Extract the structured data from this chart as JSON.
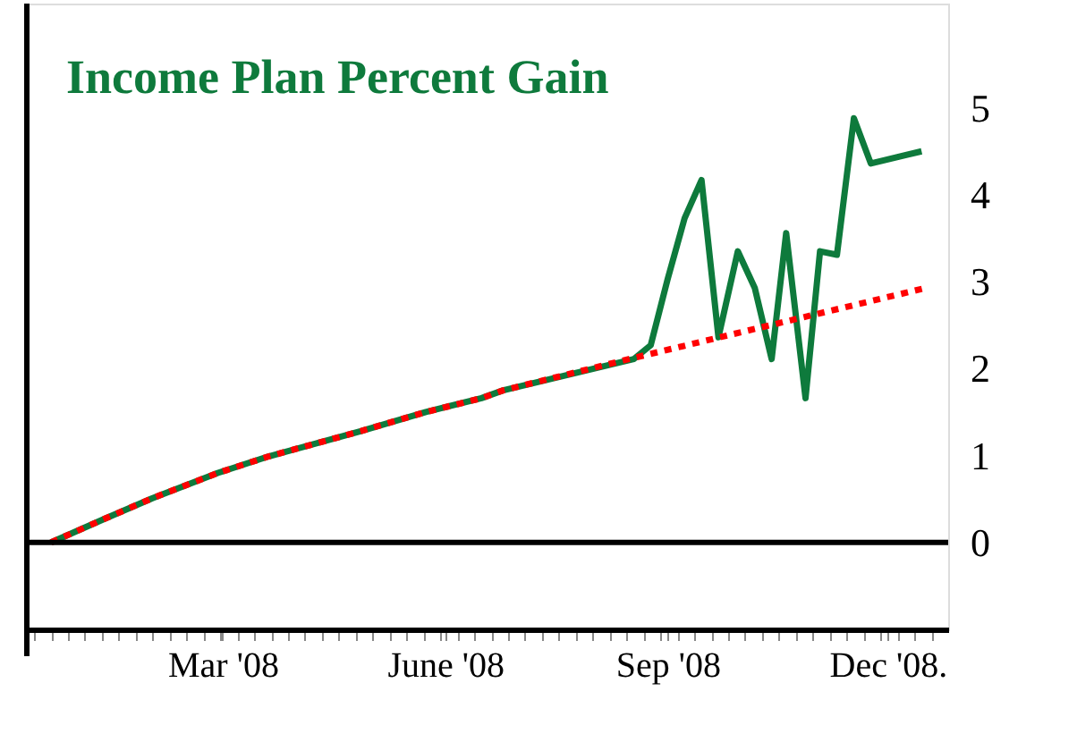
{
  "chart_data": {
    "type": "line",
    "title": "Income Plan Percent Gain",
    "series": [
      {
        "color": "#0e7a3c",
        "line_style": "solid",
        "x": [
          "2007-12-21",
          "2008-01-12",
          "2008-02-01",
          "2008-02-28",
          "2008-03-20",
          "2008-04-27",
          "2008-05-24",
          "2008-06-16",
          "2008-06-25",
          "2008-08-18",
          "2008-08-25",
          "2008-09-01",
          "2008-09-08",
          "2008-09-15",
          "2008-09-22",
          "2008-09-30",
          "2008-10-07",
          "2008-10-14",
          "2008-10-20",
          "2008-10-28",
          "2008-11-03",
          "2008-11-10",
          "2008-11-17",
          "2008-11-24",
          "2008-12-15"
        ],
        "values": [
          0,
          0.27,
          0.51,
          0.8,
          0.99,
          1.28,
          1.5,
          1.66,
          1.75,
          2.11,
          2.27,
          3.03,
          3.73,
          4.17,
          2.36,
          3.35,
          2.93,
          2.11,
          3.56,
          1.66,
          3.35,
          3.31,
          4.88,
          4.36,
          4.5
        ]
      },
      {
        "color": "#ff0000",
        "line_style": "dotted",
        "x": [
          "2007-12-21",
          "2008-01-12",
          "2008-02-01",
          "2008-02-28",
          "2008-03-20",
          "2008-04-27",
          "2008-05-24",
          "2008-06-16",
          "2008-06-25",
          "2008-08-16",
          "2008-12-17"
        ],
        "values": [
          0,
          0.27,
          0.51,
          0.8,
          0.99,
          1.28,
          1.5,
          1.66,
          1.75,
          2.11,
          2.93
        ]
      }
    ],
    "xlim": [
      "2007-12-11",
      "2008-12-26"
    ],
    "ylim": [
      -1,
      6.2
    ],
    "xticks": [
      {
        "value": "2007-12-14",
        "label": null
      },
      {
        "value": "2007-12-21",
        "label": null
      },
      {
        "value": "2007-12-28",
        "label": null
      },
      {
        "value": "2008-01-04",
        "label": null
      },
      {
        "value": "2008-01-11",
        "label": null
      },
      {
        "value": "2008-01-18",
        "label": null
      },
      {
        "value": "2008-01-25",
        "label": null
      },
      {
        "value": "2008-02-01",
        "label": null
      },
      {
        "value": "2008-02-08",
        "label": null
      },
      {
        "value": "2008-02-15",
        "label": null
      },
      {
        "value": "2008-02-22",
        "label": null
      },
      {
        "value": "2008-02-29",
        "label": null
      },
      {
        "value": "2008-03-01",
        "label": "Mar '08"
      },
      {
        "value": "2008-03-07",
        "label": null
      },
      {
        "value": "2008-03-14",
        "label": null
      },
      {
        "value": "2008-03-21",
        "label": null
      },
      {
        "value": "2008-03-28",
        "label": null
      },
      {
        "value": "2008-04-04",
        "label": null
      },
      {
        "value": "2008-04-11",
        "label": null
      },
      {
        "value": "2008-04-18",
        "label": null
      },
      {
        "value": "2008-04-25",
        "label": null
      },
      {
        "value": "2008-05-02",
        "label": null
      },
      {
        "value": "2008-05-09",
        "label": null
      },
      {
        "value": "2008-05-16",
        "label": null
      },
      {
        "value": "2008-05-23",
        "label": null
      },
      {
        "value": "2008-05-30",
        "label": null
      },
      {
        "value": "2008-06-01",
        "label": "June '08"
      },
      {
        "value": "2008-06-06",
        "label": null
      },
      {
        "value": "2008-06-13",
        "label": null
      },
      {
        "value": "2008-06-20",
        "label": null
      },
      {
        "value": "2008-06-27",
        "label": null
      },
      {
        "value": "2008-07-04",
        "label": null
      },
      {
        "value": "2008-07-11",
        "label": null
      },
      {
        "value": "2008-07-18",
        "label": null
      },
      {
        "value": "2008-07-25",
        "label": null
      },
      {
        "value": "2008-08-01",
        "label": null
      },
      {
        "value": "2008-08-08",
        "label": null
      },
      {
        "value": "2008-08-15",
        "label": null
      },
      {
        "value": "2008-08-22",
        "label": null
      },
      {
        "value": "2008-08-29",
        "label": null
      },
      {
        "value": "2008-09-01",
        "label": "Sep '08"
      },
      {
        "value": "2008-09-05",
        "label": null
      },
      {
        "value": "2008-09-12",
        "label": null
      },
      {
        "value": "2008-09-19",
        "label": null
      },
      {
        "value": "2008-09-26",
        "label": null
      },
      {
        "value": "2008-10-03",
        "label": null
      },
      {
        "value": "2008-10-10",
        "label": null
      },
      {
        "value": "2008-10-17",
        "label": null
      },
      {
        "value": "2008-10-24",
        "label": null
      },
      {
        "value": "2008-10-31",
        "label": null
      },
      {
        "value": "2008-11-07",
        "label": null
      },
      {
        "value": "2008-11-14",
        "label": null
      },
      {
        "value": "2008-11-21",
        "label": null
      },
      {
        "value": "2008-11-28",
        "label": null
      },
      {
        "value": "2008-12-01",
        "label": "Dec '08."
      },
      {
        "value": "2008-12-05",
        "label": null
      },
      {
        "value": "2008-12-12",
        "label": null
      },
      {
        "value": "2008-12-19",
        "label": null
      }
    ],
    "yticks": [
      0,
      1,
      2,
      3,
      4,
      5
    ],
    "ref_lines": [
      {
        "axis": "y",
        "value": 0,
        "label": null,
        "color": "#000000"
      }
    ],
    "grid": false,
    "legend": false
  }
}
